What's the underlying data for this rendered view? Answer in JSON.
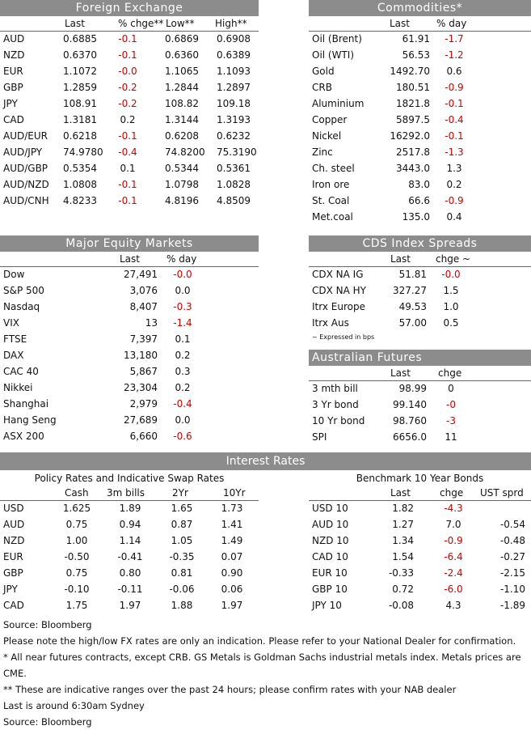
{
  "fx": {
    "title": "Foreign Exchange",
    "headers": [
      "Last",
      "% chge**",
      "Low**",
      "High**"
    ],
    "rows": [
      {
        "name": "AUD",
        "last": "0.6885",
        "chg": "-0.1",
        "low": "0.6869",
        "high": "0.6908"
      },
      {
        "name": "NZD",
        "last": "0.6370",
        "chg": "-0.1",
        "low": "0.6360",
        "high": "0.6389"
      },
      {
        "name": "EUR",
        "last": "1.1072",
        "chg": "-0.0",
        "low": "1.1065",
        "high": "1.1093"
      },
      {
        "name": "GBP",
        "last": "1.2859",
        "chg": "-0.2",
        "low": "1.2844",
        "high": "1.2897"
      },
      {
        "name": "JPY",
        "last": "108.91",
        "chg": "-0.2",
        "low": "108.82",
        "high": "109.18"
      },
      {
        "name": "CAD",
        "last": "1.3181",
        "chg": "0.2",
        "low": "1.3144",
        "high": "1.3193"
      },
      {
        "name": "AUD/EUR",
        "last": "0.6218",
        "chg": "-0.1",
        "low": "0.6208",
        "high": "0.6232"
      },
      {
        "name": "AUD/JPY",
        "last": "74.9780",
        "chg": "-0.4",
        "low": "74.8200",
        "high": "75.3190"
      },
      {
        "name": "AUD/GBP",
        "last": "0.5354",
        "chg": "0.1",
        "low": "0.5344",
        "high": "0.5361"
      },
      {
        "name": "AUD/NZD",
        "last": "1.0808",
        "chg": "-0.1",
        "low": "1.0798",
        "high": "1.0828"
      },
      {
        "name": "AUD/CNH",
        "last": "4.8233",
        "chg": "-0.1",
        "low": "4.8196",
        "high": "4.8509"
      }
    ]
  },
  "commodities": {
    "title": "Commodities*",
    "headers": [
      "Last",
      "% day"
    ],
    "rows": [
      {
        "name": "Oil (Brent)",
        "last": "61.91",
        "chg": "-1.7"
      },
      {
        "name": "Oil (WTI)",
        "last": "56.53",
        "chg": "-1.2"
      },
      {
        "name": "Gold",
        "last": "1492.70",
        "chg": "0.6"
      },
      {
        "name": "CRB",
        "last": "180.51",
        "chg": "-0.9"
      },
      {
        "name": "Aluminium",
        "last": "1821.8",
        "chg": "-0.1"
      },
      {
        "name": "Copper",
        "last": "5897.5",
        "chg": "-0.4"
      },
      {
        "name": "Nickel",
        "last": "16292.0",
        "chg": "-0.1"
      },
      {
        "name": "Zinc",
        "last": "2517.8",
        "chg": "-1.3"
      },
      {
        "name": "Ch. steel",
        "last": "3443.0",
        "chg": "1.3"
      },
      {
        "name": "Iron ore",
        "last": "83.0",
        "chg": "0.2"
      },
      {
        "name": "St. Coal",
        "last": "66.6",
        "chg": "-0.9"
      },
      {
        "name": "Met.coal",
        "last": "135.0",
        "chg": "0.4"
      }
    ]
  },
  "equity": {
    "title": "Major Equity Markets",
    "headers": [
      "Last",
      "% day"
    ],
    "rows": [
      {
        "name": "Dow",
        "last": "27,491",
        "chg": "-0.0"
      },
      {
        "name": "S&P 500",
        "last": "3,076",
        "chg": "0.0"
      },
      {
        "name": "Nasdaq",
        "last": "8,407",
        "chg": "-0.3"
      },
      {
        "name": "VIX",
        "last": "13",
        "chg": "-1.4"
      },
      {
        "name": "FTSE",
        "last": "7,397",
        "chg": "0.1"
      },
      {
        "name": "DAX",
        "last": "13,180",
        "chg": "0.2"
      },
      {
        "name": "CAC 40",
        "last": "5,867",
        "chg": "0.3"
      },
      {
        "name": "Nikkei",
        "last": "23,304",
        "chg": "0.2"
      },
      {
        "name": "Shanghai",
        "last": "2,979",
        "chg": "-0.4"
      },
      {
        "name": "Hang Seng",
        "last": "27,689",
        "chg": "0.0"
      },
      {
        "name": "ASX 200",
        "last": "6,660",
        "chg": "-0.6"
      }
    ]
  },
  "cds": {
    "title": "CDS Index Spreads",
    "headers": [
      "Last",
      "chge ~"
    ],
    "rows": [
      {
        "name": "CDX NA IG",
        "last": "51.81",
        "chg": "-0.0"
      },
      {
        "name": "CDX NA HY",
        "last": "327.27",
        "chg": "1.5"
      },
      {
        "name": "Itrx Europe",
        "last": "49.53",
        "chg": "1.0"
      },
      {
        "name": "Itrx Aus",
        "last": "57.00",
        "chg": "0.5"
      }
    ],
    "note": "~ Expressed in bps"
  },
  "futures": {
    "title": "Australian Futures",
    "headers": [
      "Last",
      "chge"
    ],
    "rows": [
      {
        "name": "3 mth bill",
        "last": "98.99",
        "chg": "0"
      },
      {
        "name": "3 Yr bond",
        "last": "99.140",
        "chg": "-0"
      },
      {
        "name": "10 Yr bond",
        "last": "98.760",
        "chg": "-3"
      },
      {
        "name": "SPI",
        "last": "6656.0",
        "chg": "11"
      }
    ]
  },
  "interest_rates": {
    "title": "Interest Rates",
    "policy": {
      "title": "Policy Rates and Indicative Swap Rates",
      "headers": [
        "Cash",
        "3m bills",
        "2Yr",
        "10Yr"
      ],
      "rows": [
        {
          "name": "USD",
          "cash": "1.625",
          "bills": "1.89",
          "y2": "1.65",
          "y10": "1.73"
        },
        {
          "name": "AUD",
          "cash": "0.75",
          "bills": "0.94",
          "y2": "0.87",
          "y10": "1.41"
        },
        {
          "name": "NZD",
          "cash": "1.00",
          "bills": "1.14",
          "y2": "1.05",
          "y10": "1.49"
        },
        {
          "name": "EUR",
          "cash": "-0.50",
          "bills": "-0.41",
          "y2": "-0.35",
          "y10": "0.07"
        },
        {
          "name": "GBP",
          "cash": "0.75",
          "bills": "0.80",
          "y2": "0.81",
          "y10": "0.90"
        },
        {
          "name": "JPY",
          "cash": "-0.10",
          "bills": "-0.11",
          "y2": "-0.06",
          "y10": "0.06"
        },
        {
          "name": "CAD",
          "cash": "1.75",
          "bills": "1.97",
          "y2": "1.88",
          "y10": "1.97"
        }
      ]
    },
    "bonds": {
      "title": "Benchmark 10 Year Bonds",
      "headers": [
        "Last",
        "chge",
        "UST sprd"
      ],
      "rows": [
        {
          "name": "USD 10",
          "last": "1.82",
          "chg": "-4.3",
          "sprd": ""
        },
        {
          "name": "AUD 10",
          "last": "1.27",
          "chg": "7.0",
          "sprd": "-0.54"
        },
        {
          "name": "NZD 10",
          "last": "1.34",
          "chg": "-0.9",
          "sprd": "-0.48"
        },
        {
          "name": "CAD 10",
          "last": "1.54",
          "chg": "-6.4",
          "sprd": "-0.27"
        },
        {
          "name": "EUR 10",
          "last": "-0.33",
          "chg": "-2.4",
          "sprd": "-2.15"
        },
        {
          "name": "GBP 10",
          "last": "0.72",
          "chg": "-6.0",
          "sprd": "-1.10"
        },
        {
          "name": "JPY 10",
          "last": "-0.08",
          "chg": "4.3",
          "sprd": "-1.89"
        }
      ]
    }
  },
  "footer": [
    "Source: Bloomberg",
    "Please note the high/low FX rates are only an indication. Please refer to your National Dealer for confirmation.",
    "* All near futures contracts, except CRB.  GS Metals is Goldman Sachs industrial metals index.  Metals prices are CME.",
    "** These are indicative ranges over the past 24 hours; please confirm rates with your NAB dealer",
    "Last is around 6:30am Sydney",
    "Source: Bloomberg"
  ],
  "colors": {
    "header_bg": "#8c8c8c",
    "negative": "#cc0000"
  }
}
